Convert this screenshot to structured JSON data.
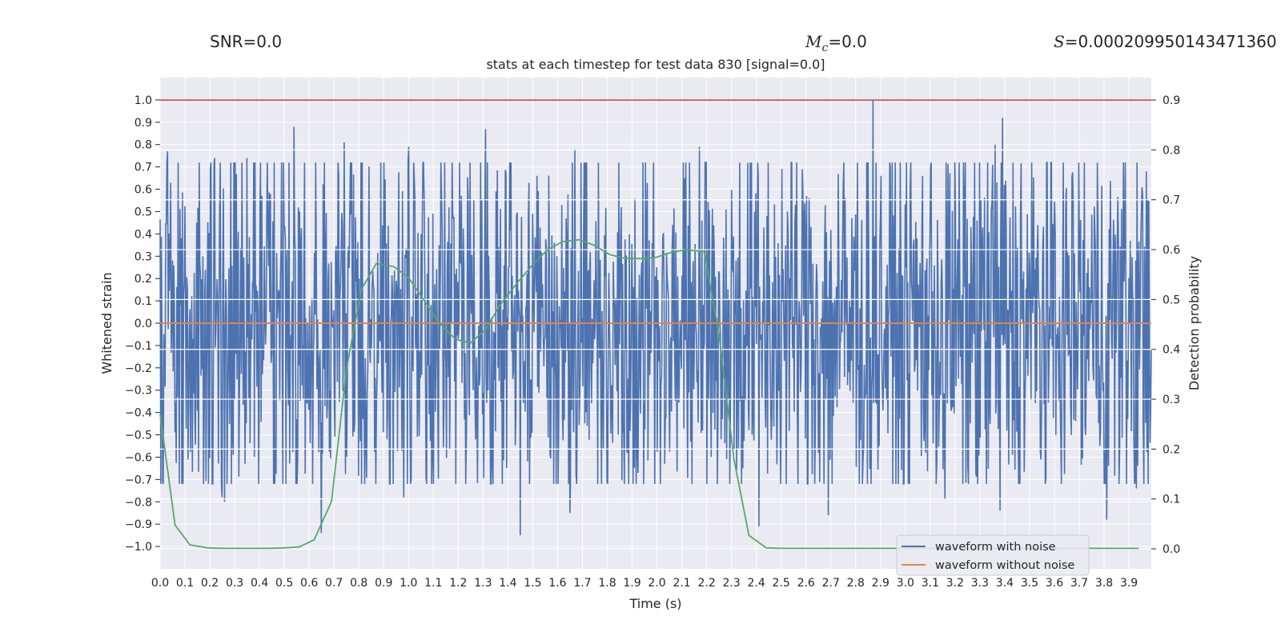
{
  "header": {
    "snr_text": "SNR=0.0",
    "mc_symbol": "M",
    "mc_sub": "c",
    "mc_value": "=0.0",
    "s_symbol": "S",
    "s_value": "=0.000209950143471360"
  },
  "chart_data": {
    "type": "line",
    "title": "stats at each timestep for test data 830 [signal=0.0]",
    "xlabel": "Time (s)",
    "ylabel_left": "Whitened strain",
    "ylabel_right": "Detection probability",
    "xlim": [
      0.0,
      3.99
    ],
    "ylim_left": [
      -1.1,
      1.1
    ],
    "ylim_right": [
      -0.04,
      0.945
    ],
    "x_ticks": [
      0.0,
      0.1,
      0.2,
      0.3,
      0.4,
      0.5,
      0.6,
      0.7,
      0.8,
      0.9,
      1.0,
      1.1,
      1.2,
      1.3,
      1.4,
      1.5,
      1.6,
      1.7,
      1.8,
      1.9,
      2.0,
      2.1,
      2.2,
      2.3,
      2.4,
      2.5,
      2.6,
      2.7,
      2.8,
      2.9,
      3.0,
      3.1,
      3.2,
      3.3,
      3.4,
      3.5,
      3.6,
      3.7,
      3.8,
      3.9
    ],
    "x_tick_labels": [
      "0.0",
      "0.1",
      "0.2",
      "0.3",
      "0.4",
      "0.5",
      "0.6",
      "0.7",
      "0.8",
      "0.9",
      "1.0",
      "1.1",
      "1.2",
      "1.3",
      "1.4",
      "1.5",
      "1.6",
      "1.7",
      "1.8",
      "1.9",
      "2.0",
      "2.1",
      "2.2",
      "2.3",
      "2.4",
      "2.5",
      "2.6",
      "2.7",
      "2.8",
      "2.9",
      "3.0",
      "3.1",
      "3.2",
      "3.3",
      "3.4",
      "3.5",
      "3.6",
      "3.7",
      "3.8",
      "3.9"
    ],
    "y_left_ticks": [
      1.0,
      0.9,
      0.8,
      0.7,
      0.6,
      0.5,
      0.4,
      0.3,
      0.2,
      0.1,
      0.0,
      -0.1,
      -0.2,
      -0.3,
      -0.4,
      -0.5,
      -0.6,
      -0.7,
      -0.8,
      -0.9,
      -1.0
    ],
    "y_left_tick_labels": [
      "1.0",
      "0.9",
      "0.8",
      "0.7",
      "0.6",
      "0.5",
      "0.4",
      "0.3",
      "0.2",
      "0.1",
      "0.0",
      "−0.1",
      "−0.2",
      "−0.3",
      "−0.4",
      "−0.5",
      "−0.6",
      "−0.7",
      "−0.8",
      "−0.9",
      "−1.0"
    ],
    "y_right_ticks": [
      0.9,
      0.8,
      0.7,
      0.6,
      0.5,
      0.4,
      0.3,
      0.2,
      0.1,
      0.0
    ],
    "y_right_tick_labels": [
      "0.9",
      "0.8",
      "0.7",
      "0.6",
      "0.5",
      "0.4",
      "0.3",
      "0.2",
      "0.1",
      "0.0"
    ],
    "threshold": {
      "value": 0.9,
      "axis": "right",
      "color": "#c44e52"
    },
    "noisy_waveform": {
      "name": "waveform with noise",
      "color": "#4c72b0",
      "x_range": [
        0.0,
        3.99
      ],
      "n_samples": 1600,
      "typical_envelope": 0.45,
      "peaks": [
        {
          "x": 0.03,
          "y": 0.77
        },
        {
          "x": 0.22,
          "y": 0.74
        },
        {
          "x": 0.35,
          "y": 0.74
        },
        {
          "x": 0.54,
          "y": 0.88
        },
        {
          "x": 0.74,
          "y": 0.81
        },
        {
          "x": 1.0,
          "y": 0.79
        },
        {
          "x": 1.31,
          "y": 0.87
        },
        {
          "x": 1.67,
          "y": 0.78
        },
        {
          "x": 2.17,
          "y": 0.79
        },
        {
          "x": 2.87,
          "y": 1.0
        },
        {
          "x": 3.39,
          "y": 0.92
        },
        {
          "x": 3.36,
          "y": 0.8
        },
        {
          "x": 3.97,
          "y": 0.68
        }
      ],
      "troughs": [
        {
          "x": 0.01,
          "y": -0.71
        },
        {
          "x": 0.25,
          "y": -0.78
        },
        {
          "x": 0.26,
          "y": -0.8
        },
        {
          "x": 0.65,
          "y": -0.94
        },
        {
          "x": 0.98,
          "y": -0.78
        },
        {
          "x": 1.45,
          "y": -0.95
        },
        {
          "x": 1.65,
          "y": -0.85
        },
        {
          "x": 2.41,
          "y": -0.91
        },
        {
          "x": 2.69,
          "y": -0.86
        },
        {
          "x": 3.16,
          "y": -0.79
        },
        {
          "x": 3.38,
          "y": -0.84
        },
        {
          "x": 3.81,
          "y": -0.88
        },
        {
          "x": 3.93,
          "y": -0.74
        }
      ]
    },
    "clean_waveform": {
      "name": "waveform without noise",
      "color": "#dd8452",
      "x": [
        0.0,
        3.99
      ],
      "y": [
        0.0,
        0.0
      ]
    },
    "detection_probability": {
      "name": "detection probability",
      "color": "#55a868",
      "axis": "right",
      "x": [
        0.0,
        0.06,
        0.12,
        0.19,
        0.25,
        0.31,
        0.37,
        0.44,
        0.5,
        0.56,
        0.62,
        0.69,
        0.75,
        0.81,
        0.87,
        0.94,
        1.0,
        1.06,
        1.12,
        1.19,
        1.25,
        1.31,
        1.37,
        1.44,
        1.5,
        1.56,
        1.62,
        1.69,
        1.75,
        1.81,
        1.87,
        1.94,
        2.0,
        2.06,
        2.12,
        2.19,
        2.25,
        2.31,
        2.37,
        2.44,
        2.5,
        2.56,
        2.62,
        2.69,
        2.75,
        2.81,
        2.87,
        2.94,
        3.0,
        3.06,
        3.12,
        3.19,
        3.25,
        3.31,
        3.37,
        3.44,
        3.5,
        3.56,
        3.62,
        3.69,
        3.75,
        3.81,
        3.87,
        3.94
      ],
      "y": [
        0.27,
        0.048,
        0.008,
        0.002,
        0.001,
        0.001,
        0.001,
        0.001,
        0.002,
        0.004,
        0.018,
        0.095,
        0.36,
        0.52,
        0.572,
        0.566,
        0.544,
        0.5,
        0.455,
        0.42,
        0.413,
        0.44,
        0.49,
        0.535,
        0.57,
        0.6,
        0.616,
        0.62,
        0.608,
        0.59,
        0.583,
        0.582,
        0.585,
        0.595,
        0.6,
        0.596,
        0.43,
        0.18,
        0.027,
        0.002,
        0.001,
        0.001,
        0.001,
        0.001,
        0.001,
        0.001,
        0.001,
        0.001,
        0.001,
        0.001,
        0.001,
        0.001,
        0.001,
        0.001,
        0.001,
        0.001,
        0.001,
        0.001,
        0.001,
        0.001,
        0.001,
        0.001,
        0.001,
        0.001
      ]
    },
    "legend": {
      "position": "lower-right",
      "entries": [
        {
          "label": "waveform with noise",
          "color": "#4c72b0"
        },
        {
          "label": "waveform without noise",
          "color": "#dd8452"
        }
      ]
    }
  }
}
